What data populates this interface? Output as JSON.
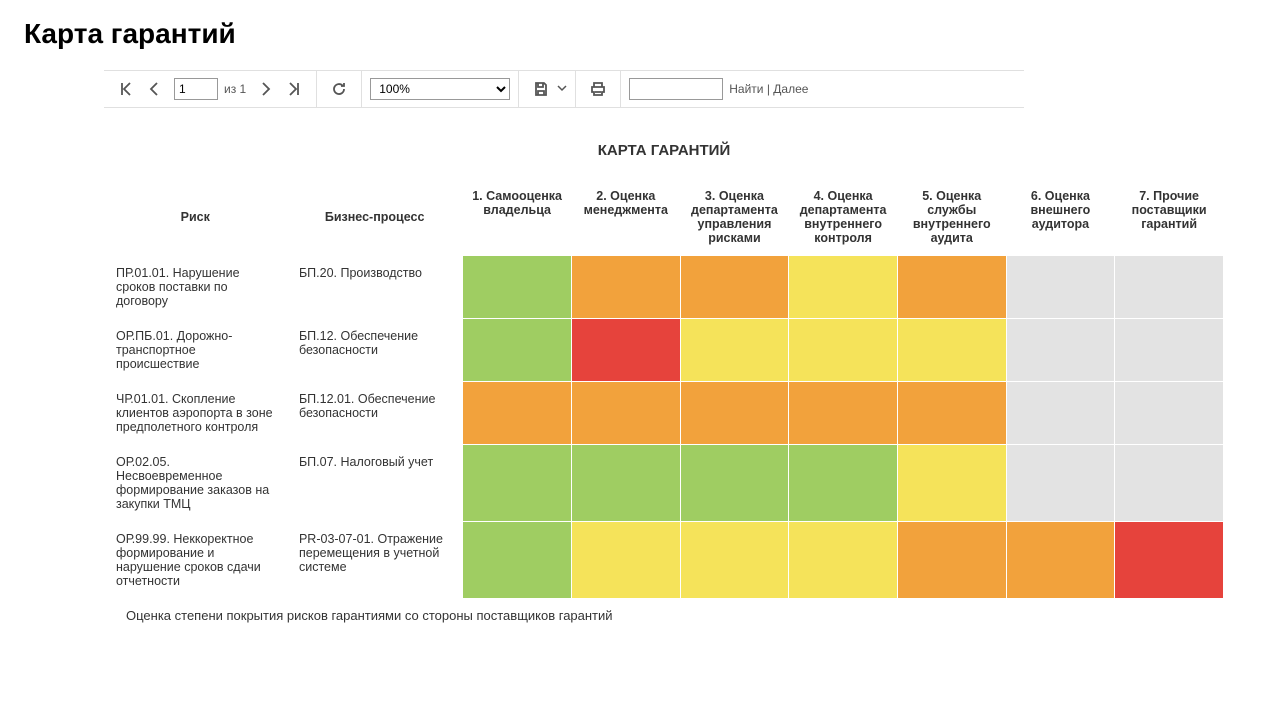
{
  "page_title": "Карта гарантий",
  "toolbar": {
    "page_current": "1",
    "page_of_prefix": "из ",
    "page_total": "1",
    "zoom": "100%",
    "find_label": "Найти",
    "next_label": "Далее"
  },
  "report": {
    "title": "КАРТА ГАРАНТИЙ",
    "footer": "Оценка степени покрытия рисков гарантиями со стороны поставщиков гарантий",
    "columns": {
      "risk": "Риск",
      "bp": "Бизнес-процесс",
      "ratings": [
        "1. Самооценка владельца",
        "2. Оценка менеджмента",
        "3. Оценка департамента управления рисками",
        "4. Оценка департамента внутреннего контроля",
        "5. Оценка службы внутреннего аудита",
        "6. Оценка внешнего аудитора",
        "7. Прочие поставщики гарантий"
      ]
    },
    "palette": {
      "green": "#9fcd62",
      "yellow": "#f5e35a",
      "orange": "#f2a23c",
      "red": "#e6433c",
      "gray": "#e3e3e3"
    },
    "rows": [
      {
        "risk": "ПР.01.01. Нарушение сроков поставки по договору",
        "bp": "БП.20. Производство",
        "ratings": [
          "green",
          "orange",
          "orange",
          "yellow",
          "orange",
          "gray",
          "gray"
        ]
      },
      {
        "risk": "ОР.ПБ.01. Дорожно-транспортное происшествие",
        "bp": "БП.12. Обеспечение безопасности",
        "ratings": [
          "green",
          "red",
          "yellow",
          "yellow",
          "yellow",
          "gray",
          "gray"
        ]
      },
      {
        "risk": "ЧР.01.01. Скопление клиентов аэропорта в зоне предполетного контроля",
        "bp": "БП.12.01. Обеспечение безопасности",
        "ratings": [
          "orange",
          "orange",
          "orange",
          "orange",
          "orange",
          "gray",
          "gray"
        ]
      },
      {
        "risk": "ОР.02.05. Несвоевременное формирование заказов на закупки ТМЦ",
        "bp": "БП.07. Налоговый учет",
        "ratings": [
          "green",
          "green",
          "green",
          "green",
          "yellow",
          "gray",
          "gray"
        ]
      },
      {
        "risk": "ОР.99.99. Неккоректное формирование и нарушение сроков сдачи отчетности",
        "bp": "PR-03-07-01. Отражение перемещения в учетной системе",
        "ratings": [
          "green",
          "yellow",
          "yellow",
          "yellow",
          "orange",
          "orange",
          "red"
        ]
      }
    ]
  }
}
